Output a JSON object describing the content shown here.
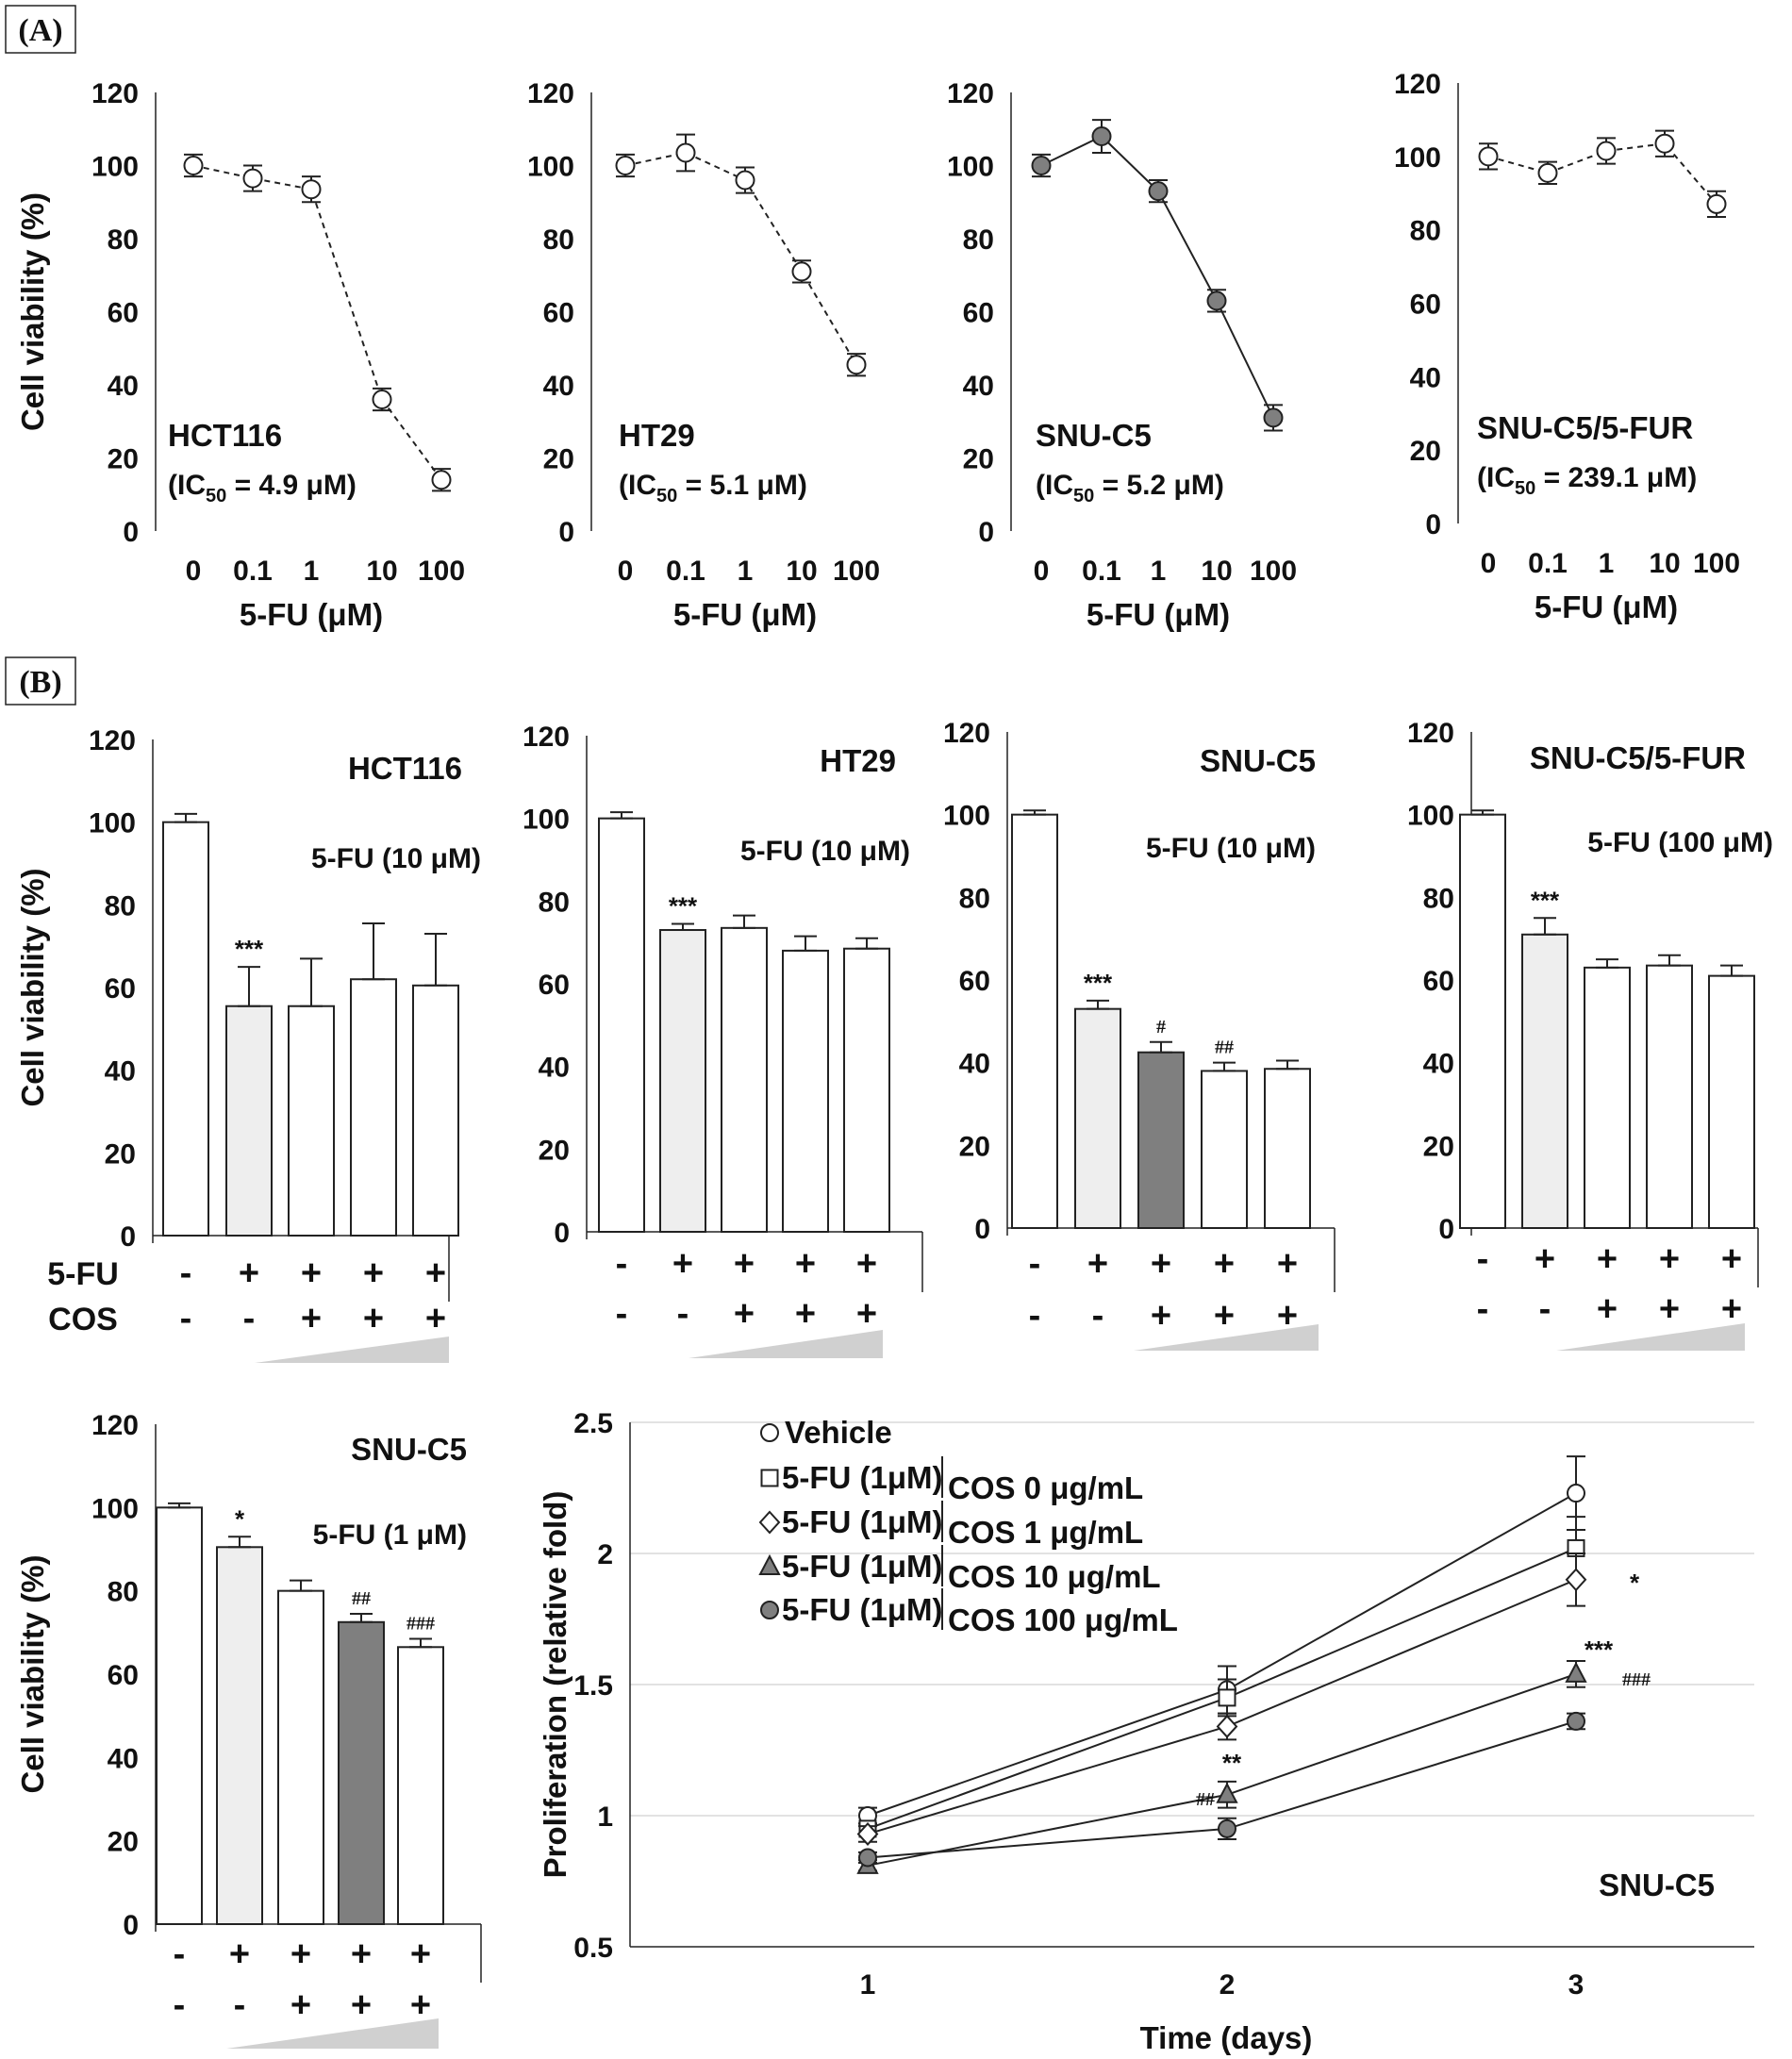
{
  "figure": {
    "panel_a": "(A)",
    "panel_b": "(B)",
    "row_labels": {
      "fu": "5-FU",
      "cos": "COS"
    }
  },
  "colors": {
    "filled_marker": "#7f7f7f",
    "light_bar": "#eeeeee",
    "dark_bar": "#7f7f7f",
    "ramp": "#d0d0d0",
    "grid": "#d9d9d9"
  },
  "chart_data": [
    {
      "id": "A1",
      "type": "line",
      "cell_line": "HCT116",
      "ic50": "(IC50 = 4.9 μM)",
      "ic50_value": "4.9 μM",
      "ylabel": "Cell viability (%)",
      "xlabel": "5-FU (μM)",
      "ylim": [
        0,
        120
      ],
      "yticks": [
        "0",
        "20",
        "40",
        "60",
        "80",
        "100",
        "120"
      ],
      "categories": [
        "0",
        "0.1",
        "1",
        "10",
        "100"
      ],
      "values": [
        100,
        96.5,
        93.5,
        36,
        14
      ],
      "errors": [
        3,
        3.5,
        3.5,
        3,
        3
      ],
      "marker": "open",
      "line_style": "dashed"
    },
    {
      "id": "A2",
      "type": "line",
      "cell_line": "HT29",
      "ic50": "(IC50 = 5.1 μM)",
      "ic50_value": "5.1 μM",
      "ylabel": "",
      "xlabel": "5-FU (μM)",
      "ylim": [
        0,
        120
      ],
      "yticks": [
        "0",
        "20",
        "40",
        "60",
        "80",
        "100",
        "120"
      ],
      "categories": [
        "0",
        "0.1",
        "1",
        "10",
        "100"
      ],
      "values": [
        100,
        103.5,
        96,
        71,
        45.5
      ],
      "errors": [
        3,
        5,
        3.5,
        3,
        3
      ],
      "marker": "open",
      "line_style": "dashed"
    },
    {
      "id": "A3",
      "type": "line",
      "cell_line": "SNU-C5",
      "ic50": "(IC50 = 5.2 μM)",
      "ic50_value": "5.2 μM",
      "ylabel": "",
      "xlabel": "5-FU (μM)",
      "ylim": [
        0,
        120
      ],
      "yticks": [
        "0",
        "20",
        "40",
        "60",
        "80",
        "100",
        "120"
      ],
      "categories": [
        "0",
        "0.1",
        "1",
        "10",
        "100"
      ],
      "values": [
        100,
        108,
        93,
        63,
        31
      ],
      "errors": [
        3,
        4.5,
        3,
        3,
        3.5
      ],
      "marker": "filled",
      "line_style": "solid"
    },
    {
      "id": "A4",
      "type": "line",
      "cell_line": "SNU-C5/5-FUR",
      "ic50": "(IC50 = 239.1 μM)",
      "ic50_value": "239.1 μM",
      "ylabel": "",
      "xlabel": "5-FU (μM)",
      "ylim": [
        0,
        120
      ],
      "yticks": [
        "0",
        "20",
        "40",
        "60",
        "80",
        "100",
        "120"
      ],
      "categories": [
        "0",
        "0.1",
        "1",
        "10",
        "100"
      ],
      "values": [
        100,
        95.5,
        101.5,
        103.5,
        87
      ],
      "errors": [
        3.5,
        3,
        3.5,
        3.5,
        3.5
      ],
      "marker": "open",
      "line_style": "dashed"
    },
    {
      "id": "B1",
      "type": "bar",
      "cell_line": "HCT116",
      "treatment": "5-FU (10 μM)",
      "ylabel": "Cell viability (%)",
      "ylim": [
        0,
        120
      ],
      "yticks": [
        "0",
        "20",
        "40",
        "60",
        "80",
        "100",
        "120"
      ],
      "values": [
        100,
        55.5,
        55.5,
        62,
        60.5
      ],
      "errors": [
        2,
        9.5,
        11.5,
        13.5,
        12.5
      ],
      "fills": [
        "white",
        "light",
        "white",
        "white",
        "white"
      ],
      "fu_row": [
        "-",
        "+",
        "+",
        "+",
        "+"
      ],
      "cos_row": [
        "-",
        "-",
        "+",
        "+",
        "+"
      ],
      "annotations": [
        {
          "bar": 1,
          "text": "***",
          "kind": "star"
        }
      ]
    },
    {
      "id": "B2",
      "type": "bar",
      "cell_line": "HT29",
      "treatment": "5-FU (10 μM)",
      "ylabel": "",
      "ylim": [
        0,
        120
      ],
      "yticks": [
        "0",
        "20",
        "40",
        "60",
        "80",
        "100",
        "120"
      ],
      "values": [
        100,
        73,
        73.5,
        68,
        68.5
      ],
      "errors": [
        1.5,
        1.5,
        3,
        3.5,
        2.5
      ],
      "fills": [
        "white",
        "light",
        "white",
        "white",
        "white"
      ],
      "fu_row": [
        "-",
        "+",
        "+",
        "+",
        "+"
      ],
      "cos_row": [
        "-",
        "-",
        "+",
        "+",
        "+"
      ],
      "annotations": [
        {
          "bar": 1,
          "text": "***",
          "kind": "star"
        }
      ]
    },
    {
      "id": "B3",
      "type": "bar",
      "cell_line": "SNU-C5",
      "treatment": "5-FU (10 μM)",
      "ylabel": "",
      "ylim": [
        0,
        120
      ],
      "yticks": [
        "0",
        "20",
        "40",
        "60",
        "80",
        "100",
        "120"
      ],
      "values": [
        100,
        53,
        42.5,
        38,
        38.5
      ],
      "errors": [
        1,
        2,
        2.5,
        2,
        2
      ],
      "fills": [
        "white",
        "light",
        "dark",
        "white",
        "white"
      ],
      "fu_row": [
        "-",
        "+",
        "+",
        "+",
        "+"
      ],
      "cos_row": [
        "-",
        "-",
        "+",
        "+",
        "+"
      ],
      "annotations": [
        {
          "bar": 1,
          "text": "***",
          "kind": "star"
        },
        {
          "bar": 2,
          "text": "#",
          "kind": "hash"
        },
        {
          "bar": 3,
          "text": "##",
          "kind": "hash"
        }
      ]
    },
    {
      "id": "B4",
      "type": "bar",
      "cell_line": "SNU-C5/5-FUR",
      "treatment": "5-FU (100 μM)",
      "ylabel": "",
      "ylim": [
        0,
        120
      ],
      "yticks": [
        "0",
        "20",
        "40",
        "60",
        "80",
        "100",
        "120"
      ],
      "values": [
        100,
        71,
        63,
        63.5,
        61
      ],
      "errors": [
        1,
        4,
        2,
        2.5,
        2.5
      ],
      "fills": [
        "white",
        "light",
        "white",
        "white",
        "white"
      ],
      "fu_row": [
        "-",
        "+",
        "+",
        "+",
        "+"
      ],
      "cos_row": [
        "-",
        "-",
        "+",
        "+",
        "+"
      ],
      "annotations": [
        {
          "bar": 1,
          "text": "***",
          "kind": "star"
        }
      ]
    },
    {
      "id": "B5",
      "type": "bar",
      "cell_line": "SNU-C5",
      "treatment": "5-FU (1 μM)",
      "ylabel": "Cell viability (%)",
      "ylim": [
        0,
        120
      ],
      "yticks": [
        "0",
        "20",
        "40",
        "60",
        "80",
        "100",
        "120"
      ],
      "values": [
        100,
        90.5,
        80,
        72.5,
        66.5
      ],
      "errors": [
        1,
        2.5,
        2.5,
        2,
        2
      ],
      "fills": [
        "white",
        "light",
        "white",
        "dark",
        "white"
      ],
      "fu_row": [
        "-",
        "+",
        "+",
        "+",
        "+"
      ],
      "cos_row": [
        "-",
        "-",
        "+",
        "+",
        "+"
      ],
      "annotations": [
        {
          "bar": 1,
          "text": "*",
          "kind": "star"
        },
        {
          "bar": 3,
          "text": "##",
          "kind": "hash"
        },
        {
          "bar": 4,
          "text": "###",
          "kind": "hash"
        }
      ]
    },
    {
      "id": "B6",
      "type": "line",
      "cell_line": "SNU-C5",
      "ylabel": "Proliferation (relative fold)",
      "xlabel": "Time (days)",
      "ylim": [
        0.5,
        2.5
      ],
      "yticks": [
        "0.5",
        "1",
        "1.5",
        "2",
        "2.5"
      ],
      "x": [
        "1",
        "2",
        "3"
      ],
      "grid": true,
      "series": [
        {
          "name": "Vehicle",
          "legend_prefix": "",
          "marker": "circle-open",
          "values": [
            1.0,
            1.48,
            2.23
          ],
          "errors": [
            0.03,
            0.09,
            0.14
          ]
        },
        {
          "name": "COS 0 μg/mL",
          "legend_prefix": "5-FU (1μM)",
          "marker": "square-open",
          "values": [
            0.95,
            1.45,
            2.02
          ],
          "errors": [
            0.02,
            0.07,
            0.12
          ]
        },
        {
          "name": "COS 1 μg/mL",
          "legend_prefix": "5-FU (1μM)",
          "marker": "diamond-open",
          "values": [
            0.93,
            1.34,
            1.9
          ],
          "errors": [
            0.03,
            0.05,
            0.1
          ]
        },
        {
          "name": "COS 10 μg/mL",
          "legend_prefix": "5-FU (1μM)",
          "marker": "triangle-filled",
          "values": [
            0.81,
            1.08,
            1.54
          ],
          "errors": [
            0.02,
            0.05,
            0.05
          ]
        },
        {
          "name": "COS 100 μg/mL",
          "legend_prefix": "5-FU (1μM)",
          "marker": "circle-filled",
          "values": [
            0.84,
            0.95,
            1.36
          ],
          "errors": [
            0.02,
            0.04,
            0.03
          ]
        }
      ],
      "annotations": [
        {
          "x": "3",
          "series": 2,
          "text": "*",
          "kind": "star"
        },
        {
          "x": "3",
          "series": 3,
          "text": "***",
          "kind": "star"
        },
        {
          "x": "3",
          "series": 3,
          "text": "###",
          "kind": "hash"
        },
        {
          "x": "2",
          "series": 3,
          "text": "**",
          "kind": "star"
        },
        {
          "x": "2",
          "series": 3,
          "text": "##",
          "kind": "hash"
        }
      ]
    }
  ]
}
